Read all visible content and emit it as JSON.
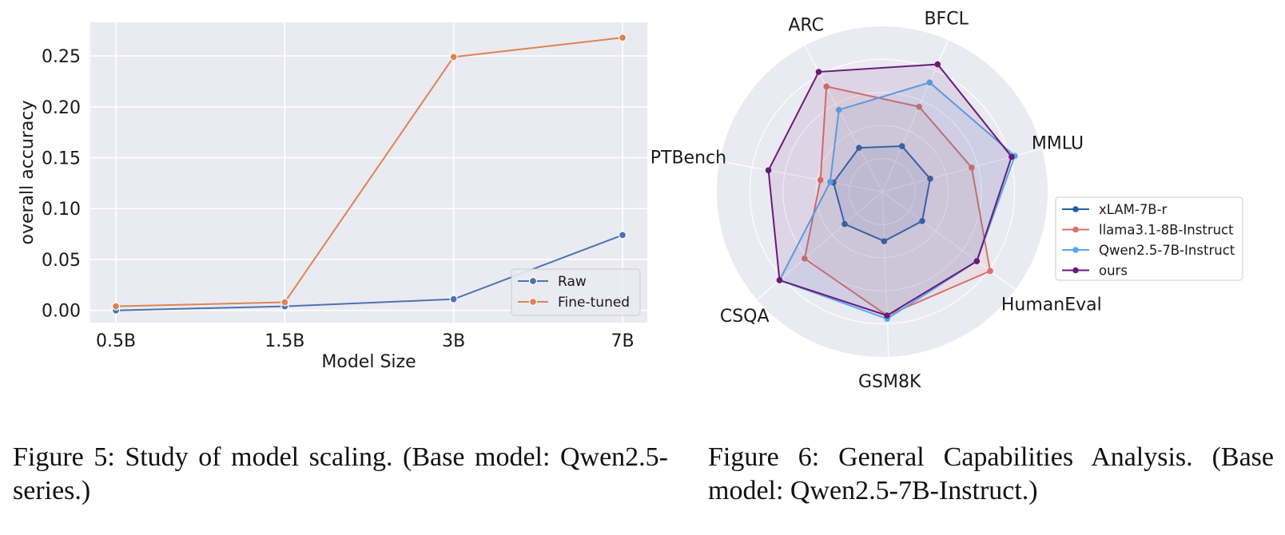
{
  "figure5": {
    "caption": "Figure 5:  Study of model scaling.  (Base model: Qwen2.5-series.)",
    "chart_data": {
      "type": "line",
      "title": "",
      "xlabel": "Model Size",
      "ylabel": "overall accuracy",
      "categories": [
        "0.5B",
        "1.5B",
        "3B",
        "7B"
      ],
      "ylim": [
        -0.012,
        0.283
      ],
      "yticks": [
        0.0,
        0.05,
        0.1,
        0.15,
        0.2,
        0.25
      ],
      "ytick_labels": [
        "0.00",
        "0.05",
        "0.10",
        "0.15",
        "0.20",
        "0.25"
      ],
      "grid": true,
      "legend_position": "bottom-right",
      "series": [
        {
          "name": "Raw",
          "color": "#4c72b0",
          "values": [
            0.0,
            0.004,
            0.011,
            0.074
          ]
        },
        {
          "name": "Fine-tuned",
          "color": "#dd8452",
          "values": [
            0.004,
            0.008,
            0.249,
            0.268
          ]
        }
      ]
    }
  },
  "figure6": {
    "caption": "Figure 6:  General Capabilities Analysis. (Base model: Qwen2.5-7B-Instruct.)",
    "chart_data": {
      "type": "radar",
      "title": "",
      "axes": [
        "BFCL",
        "MMLU",
        "HumanEval",
        "GSM8K",
        "CSQA",
        "PTBench",
        "ARC"
      ],
      "rlim": [
        0,
        1
      ],
      "grid": true,
      "legend_position": "right",
      "series": [
        {
          "name": "xLAM-7B-r",
          "color": "#1f5fa8",
          "values": [
            0.3,
            0.3,
            0.3,
            0.3,
            0.3,
            0.3,
            0.3
          ]
        },
        {
          "name": "llama3.1-8B-Instruct",
          "color": "#d9726b",
          "values": [
            0.56,
            0.56,
            0.81,
            0.75,
            0.62,
            0.38,
            0.72
          ]
        },
        {
          "name": "Qwen2.5-7B-Instruct",
          "color": "#56a9ec",
          "values": [
            0.72,
            0.83,
            0.71,
            0.77,
            0.82,
            0.32,
            0.56
          ]
        },
        {
          "name": "ours",
          "color": "#6a1a78",
          "values": [
            0.84,
            0.81,
            0.71,
            0.75,
            0.82,
            0.7,
            0.82
          ]
        }
      ]
    }
  }
}
